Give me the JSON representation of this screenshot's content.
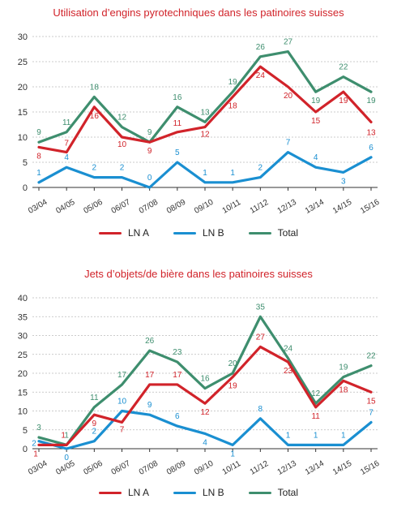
{
  "colors": {
    "lna": "#d1232a",
    "lnb": "#1a8fd1",
    "total": "#3e8e6e",
    "grid": "#bbbbbb",
    "axis": "#333333"
  },
  "legend": {
    "lna": "LN A",
    "lnb": "LN B",
    "total": "Total"
  },
  "chart_data": [
    {
      "type": "line",
      "title": "Utilisation d’engins pyrotechniques dans les patinoires suisses",
      "xlabel": "",
      "ylabel": "",
      "categories": [
        "03/04",
        "04/05",
        "05/06",
        "06/07",
        "07/08",
        "08/09",
        "09/10",
        "10/11",
        "11/12",
        "12/13",
        "13/14",
        "14/15",
        "15/16"
      ],
      "ylim": [
        0,
        30
      ],
      "yticks": [
        0,
        5,
        10,
        15,
        20,
        25,
        30
      ],
      "grid": true,
      "legend_position": "bottom",
      "series": [
        {
          "name": "LN A",
          "values": [
            8,
            7,
            16,
            10,
            9,
            11,
            12,
            18,
            24,
            20,
            15,
            19,
            13
          ]
        },
        {
          "name": "LN B",
          "values": [
            1,
            4,
            2,
            2,
            0,
            5,
            1,
            1,
            2,
            7,
            4,
            3,
            6
          ]
        },
        {
          "name": "Total",
          "values": [
            9,
            11,
            18,
            12,
            9,
            16,
            13,
            19,
            26,
            27,
            19,
            22,
            19
          ]
        }
      ]
    },
    {
      "type": "line",
      "title": "Jets d’objets/de bière dans les patinoires suisses",
      "xlabel": "",
      "ylabel": "",
      "categories": [
        "03/04",
        "04/05",
        "05/06",
        "06/07",
        "07/08",
        "08/09",
        "09/10",
        "10/11",
        "11/12",
        "12/13",
        "13/14",
        "14/15",
        "15/16"
      ],
      "ylim": [
        0,
        40
      ],
      "yticks": [
        0,
        5,
        10,
        15,
        20,
        25,
        30,
        35,
        40
      ],
      "grid": true,
      "legend_position": "bottom",
      "series": [
        {
          "name": "LN A",
          "values": [
            1,
            1,
            9,
            7,
            17,
            17,
            12,
            19,
            27,
            23,
            11,
            18,
            15
          ]
        },
        {
          "name": "LN B",
          "values": [
            2,
            0,
            2,
            10,
            9,
            6,
            4,
            1,
            8,
            1,
            1,
            1,
            7
          ]
        },
        {
          "name": "Total",
          "values": [
            3,
            1,
            11,
            17,
            26,
            23,
            16,
            20,
            35,
            24,
            12,
            19,
            22
          ]
        }
      ]
    }
  ]
}
